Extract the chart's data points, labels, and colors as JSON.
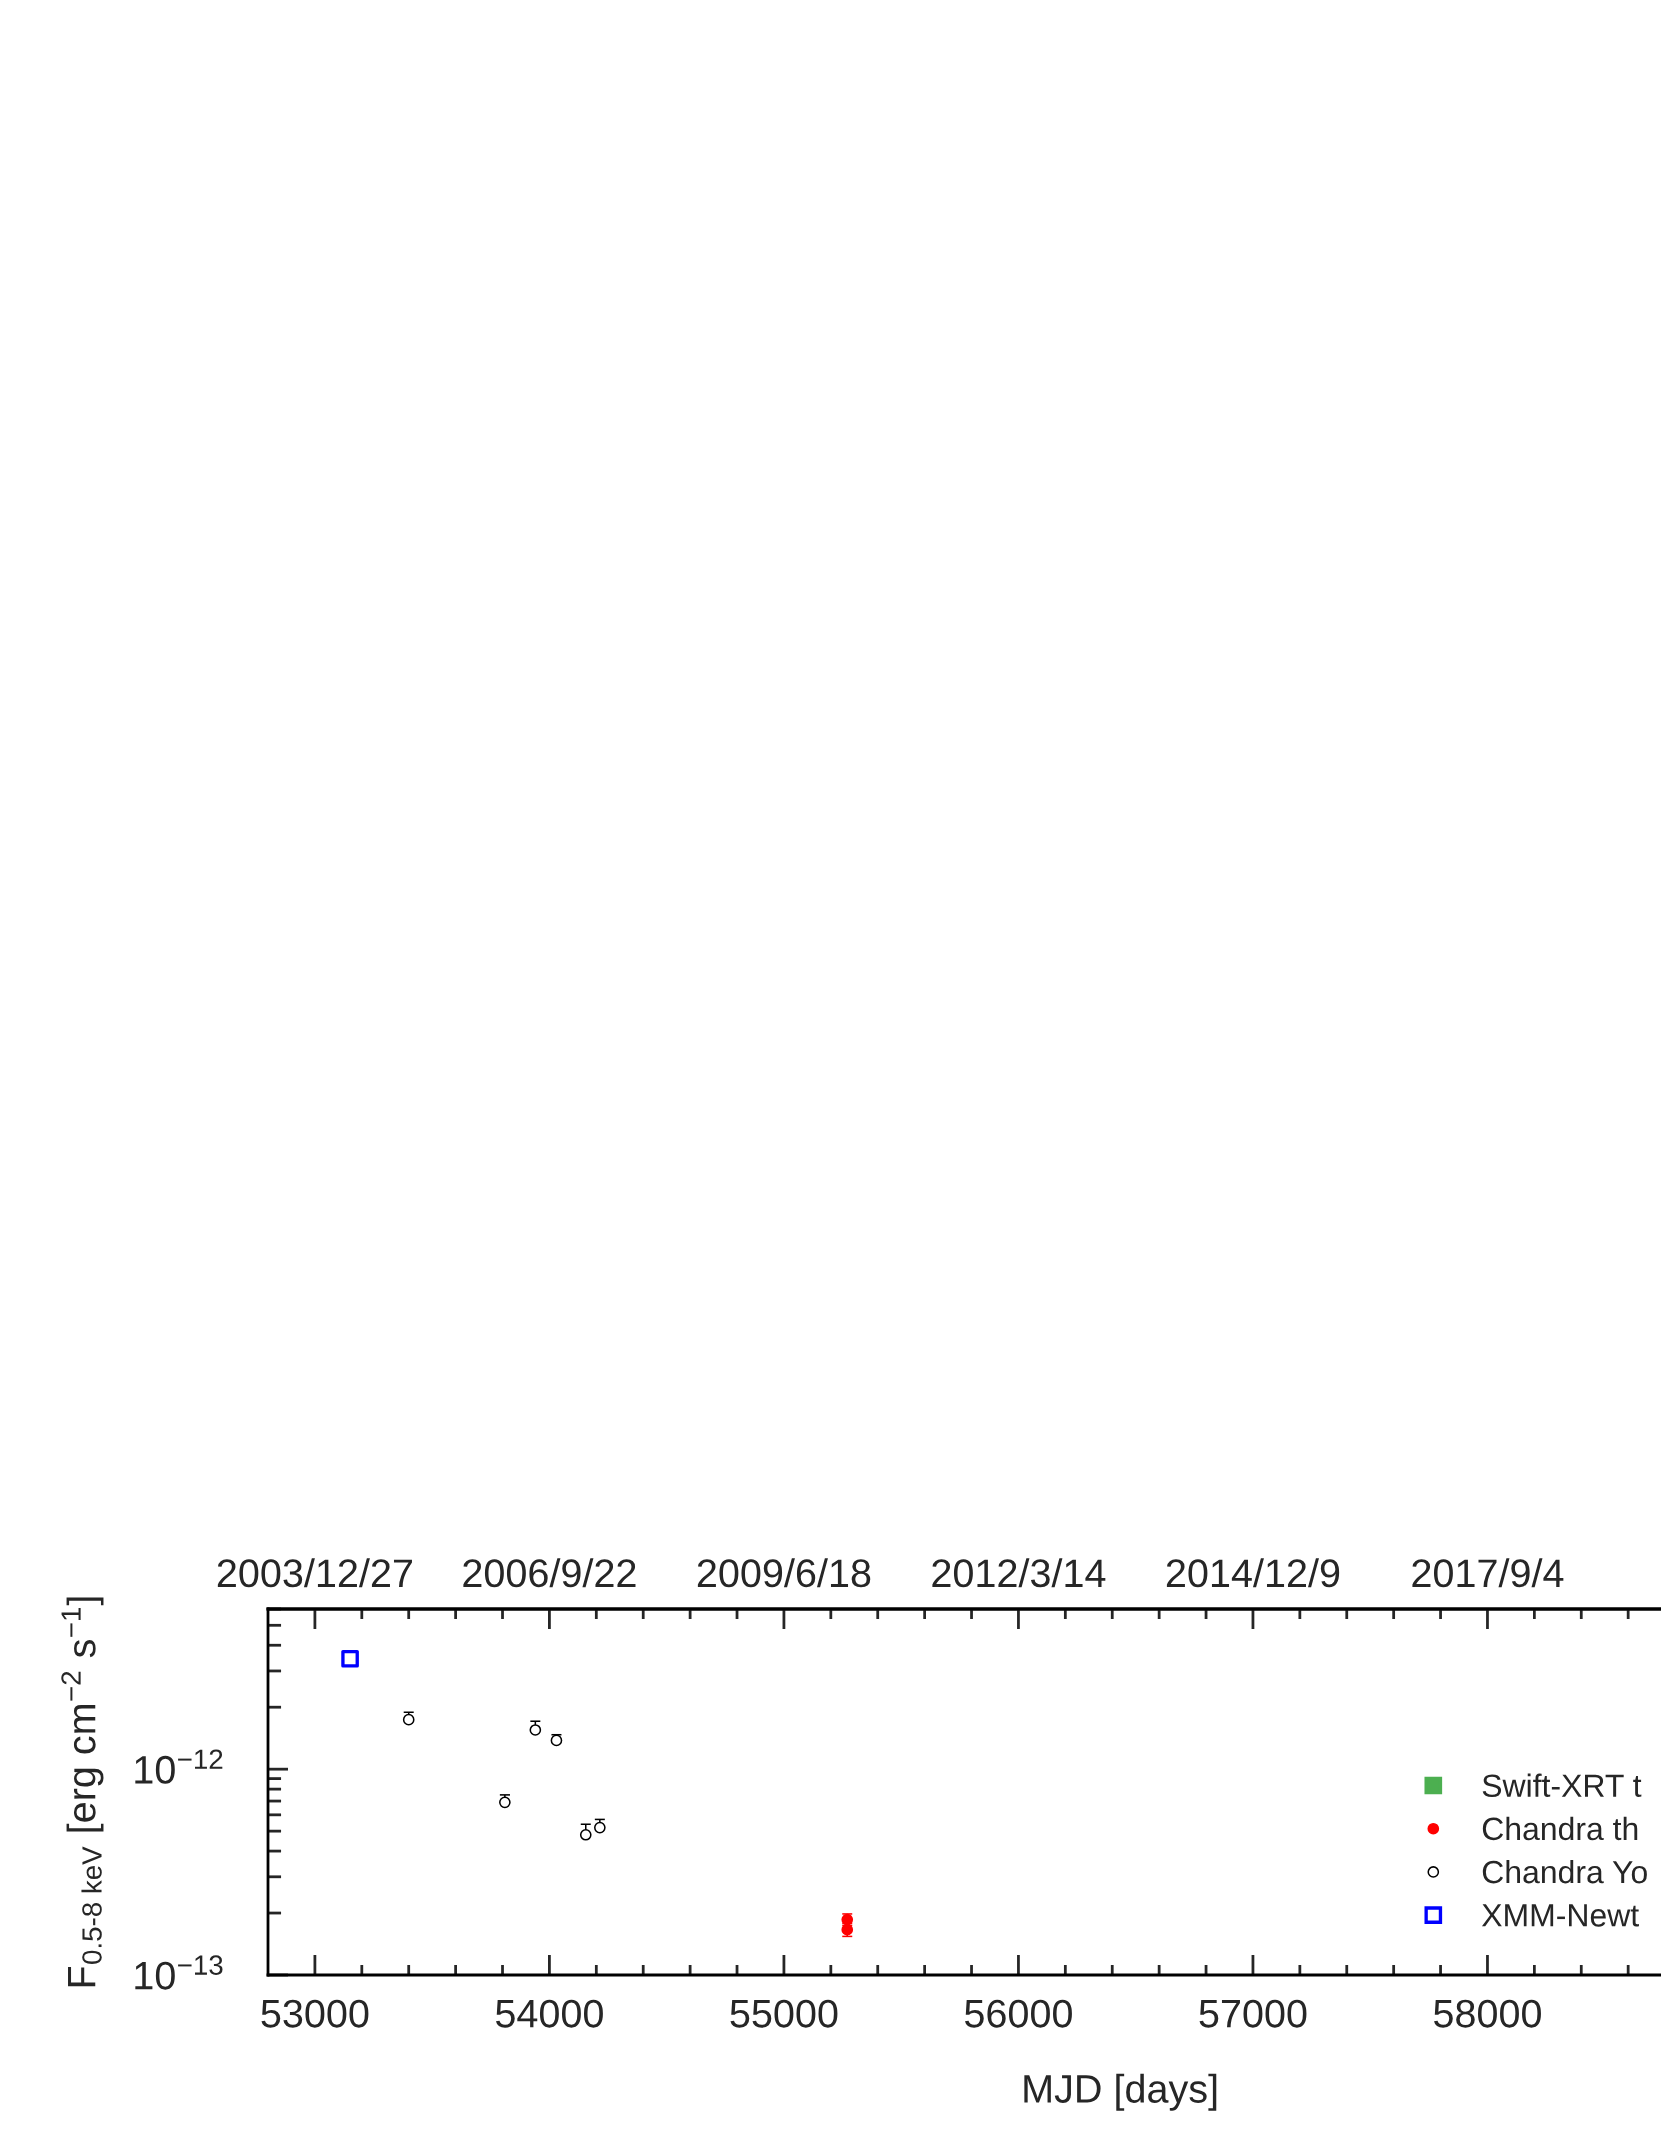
{
  "chart_data": {
    "type": "scatter",
    "xlabel": "MJD [days]",
    "ylabel": "F$_{0.5-8 keV}$ [erg cm$^{−2}$ s$^{−1}$]",
    "log": "y",
    "xlim": [
      52800,
      58740
    ],
    "xticks": [
      53000,
      {
        "value": 53200,
        "label": null
      },
      {
        "value": 53400,
        "label": null
      },
      {
        "value": 53600,
        "label": null
      },
      {
        "value": 53800,
        "label": null
      },
      54000,
      {
        "value": 54200,
        "label": null
      },
      {
        "value": 54400,
        "label": null
      },
      {
        "value": 54600,
        "label": null
      },
      {
        "value": 54800,
        "label": null
      },
      55000,
      {
        "value": 55200,
        "label": null
      },
      {
        "value": 55400,
        "label": null
      },
      {
        "value": 55600,
        "label": null
      },
      {
        "value": 55800,
        "label": null
      },
      56000,
      {
        "value": 56200,
        "label": null
      },
      {
        "value": 56400,
        "label": null
      },
      {
        "value": 56600,
        "label": null
      },
      {
        "value": 56800,
        "label": null
      },
      57000,
      {
        "value": 57200,
        "label": null
      },
      {
        "value": 57400,
        "label": null
      },
      {
        "value": 57600,
        "label": null
      },
      {
        "value": 57800,
        "label": null
      },
      58000,
      {
        "value": 58200,
        "label": null
      },
      {
        "value": 58400,
        "label": null
      },
      {
        "value": 58600,
        "label": null
      }
    ],
    "x2lim": [
      "2003-06-10",
      "2019-09-14"
    ],
    "x2ticks": [
      {
        "value": "2003-12-27",
        "label": "2003/12/27"
      },
      {
        "value": "2004-07-14",
        "label": null
      },
      {
        "value": "2005-01-30",
        "label": null
      },
      {
        "value": "2005-08-18",
        "label": null
      },
      {
        "value": "2006-03-06",
        "label": null
      },
      {
        "value": "2006-09-22",
        "label": "2006/9/22"
      },
      {
        "value": "2007-04-10",
        "label": null
      },
      {
        "value": "2007-10-27",
        "label": null
      },
      {
        "value": "2008-05-14",
        "label": null
      },
      {
        "value": "2008-11-30",
        "label": null
      },
      {
        "value": "2009-06-18",
        "label": "2009/6/18"
      },
      {
        "value": "2010-01-04",
        "label": null
      },
      {
        "value": "2010-07-23",
        "label": null
      },
      {
        "value": "2011-02-08",
        "label": null
      },
      {
        "value": "2011-08-27",
        "label": null
      },
      {
        "value": "2012-03-14",
        "label": "2012/3/14"
      },
      {
        "value": "2012-09-30",
        "label": null
      },
      {
        "value": "2013-04-18",
        "label": null
      },
      {
        "value": "2013-11-04",
        "label": null
      },
      {
        "value": "2014-05-23",
        "label": null
      },
      {
        "value": "2014-12-09",
        "label": "2014/12/9"
      },
      {
        "value": "2015-06-27",
        "label": null
      },
      {
        "value": "2016-01-13",
        "label": null
      },
      {
        "value": "2016-07-31",
        "label": null
      },
      {
        "value": "2017-02-16",
        "label": null
      },
      {
        "value": "2017-09-04",
        "label": "2017/9/4"
      },
      {
        "value": "2018-03-23",
        "label": null
      },
      {
        "value": "2018-10-09",
        "label": null
      },
      {
        "value": "2019-04-27",
        "label": null
      }
    ],
    "ylim": [
      1e-13,
      6e-12
    ],
    "yticks": [
      {
        "value": 1e-13,
        "label": "10$^{−13}$"
      },
      {
        "value": 1e-12,
        "label": "10$^{−12}$"
      }
    ],
    "legend": "lower right",
    "series": [
      {
        "name": "Swift-XRT t",
        "color": "#4caf50",
        "marker": "square"
      },
      {
        "name": "Chandra th",
        "color": "#ff0000",
        "marker": "circle",
        "x": [
          55270,
          55270
        ],
        "values": [
          1.86e-13,
          1.66e-13
        ],
        "errors": [
          1.2e-14,
          1.2e-14
        ]
      },
      {
        "name": "Chandra Yo",
        "color": "#000000",
        "marker": "circle-open",
        "x": [
          53400,
          53810,
          53940,
          54030,
          54155,
          54215
        ],
        "values": [
          1.74e-12,
          6.9e-13,
          1.55e-12,
          1.38e-12,
          4.8e-13,
          5.2e-13
        ],
        "errors": [
          [
            1.74e-12,
            1.89e-12
          ],
          [
            6.9e-13,
            7.5e-13
          ],
          [
            1.55e-12,
            1.71e-12
          ],
          [
            1.38e-12,
            1.47e-12
          ],
          [
            4.8e-13,
            5.4e-13
          ],
          [
            5.2e-13,
            5.7e-13
          ]
        ]
      },
      {
        "name": "XMM-Newt",
        "color": "#0000ff",
        "marker": "square-open",
        "x": [
          53150
        ],
        "values": [
          3.44e-12
        ]
      }
    ]
  }
}
